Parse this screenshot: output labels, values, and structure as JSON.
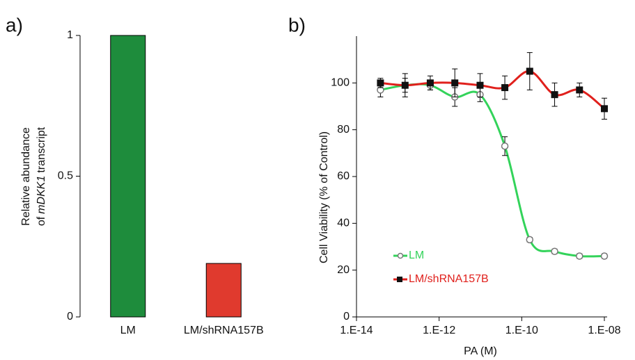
{
  "chart_data": [
    {
      "type": "bar",
      "panel": "a)",
      "ylabel": {
        "line1": "Relative abundance",
        "line2_pre": "of",
        "line2_italic": "mDKK1",
        "line2_post": "transcript"
      },
      "categories": [
        "LM",
        "LM/shRNA157B"
      ],
      "values": [
        1,
        0.19
      ],
      "colors": [
        "#1e8c3c",
        "#e03a2e"
      ],
      "ylim": [
        0,
        1
      ],
      "yticks": [
        0,
        0.5,
        1
      ]
    },
    {
      "type": "line",
      "panel": "b)",
      "xlabel": "PA (M)",
      "ylabel": "Cell Viability (% of Control)",
      "log_x": true,
      "legend": "lower left",
      "x": [
        3.8e-14,
        1.5e-13,
        6.1e-13,
        2.4e-12,
        9.8e-12,
        3.9e-11,
        1.56e-10,
        6.25e-10,
        2.5e-09,
        1e-08
      ],
      "series": [
        {
          "name": "LM",
          "color": "#33d35a",
          "marker": "open-circle",
          "values": [
            97,
            99,
            99,
            94,
            95,
            73,
            33,
            28,
            26,
            26
          ],
          "errors": [
            3,
            3,
            2,
            4,
            3,
            4,
            1,
            1,
            1,
            1
          ]
        },
        {
          "name": "LM/shRNA157B",
          "color": "#e0201c",
          "marker": "square",
          "values": [
            100,
            99,
            100,
            100,
            99,
            98,
            105,
            95,
            97,
            89
          ],
          "errors": [
            2,
            5,
            3,
            6,
            5,
            5,
            8,
            5,
            3,
            4.5
          ]
        }
      ],
      "xlim": [
        1e-14,
        1e-08
      ],
      "xticks": [
        {
          "value": 1e-14,
          "label": "1.E-14"
        },
        {
          "value": 1e-12,
          "label": "1.E-12"
        },
        {
          "value": 1e-10,
          "label": "1.E-10"
        },
        {
          "value": 1e-08,
          "label": "1.E-08"
        }
      ],
      "ylim": [
        0,
        120
      ],
      "yticks": [
        0,
        20,
        40,
        60,
        80,
        100
      ]
    }
  ]
}
